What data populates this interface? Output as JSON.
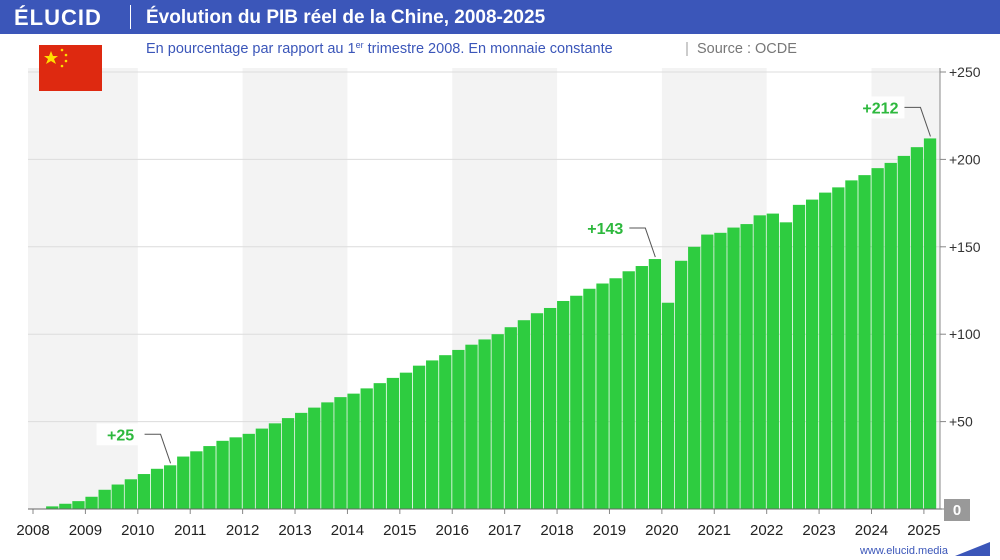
{
  "brand": "ÉLUCID",
  "footer": "www.elucid.media",
  "chart_data": {
    "type": "bar",
    "title": "Évolution du PIB réel de la Chine, 2008-2025",
    "subtitle_parts": [
      "En pourcentage par rapport au 1",
      "er",
      " trimestre 2008. En monnaie constante"
    ],
    "source": "Source : OCDE",
    "categories": [
      "2008",
      null,
      null,
      null,
      "2009",
      null,
      null,
      null,
      "2010",
      null,
      null,
      null,
      "2011",
      null,
      null,
      null,
      "2012",
      null,
      null,
      null,
      "2013",
      null,
      null,
      null,
      "2014",
      null,
      null,
      null,
      "2015",
      null,
      null,
      null,
      "2016",
      null,
      null,
      null,
      "2017",
      null,
      null,
      null,
      "2018",
      null,
      null,
      null,
      "2019",
      null,
      null,
      null,
      "2020",
      null,
      null,
      null,
      "2021",
      null,
      null,
      null,
      "2022",
      null,
      null,
      null,
      "2023",
      null,
      null,
      null,
      "2024",
      null,
      null,
      null,
      "2025"
    ],
    "values": [
      0,
      1.5,
      3,
      4.5,
      7,
      11,
      14,
      17,
      20,
      23,
      25,
      30,
      33,
      36,
      39,
      41,
      43,
      46,
      49,
      52,
      55,
      58,
      61,
      64,
      66,
      69,
      72,
      75,
      78,
      82,
      85,
      88,
      91,
      94,
      97,
      100,
      104,
      108,
      112,
      115,
      119,
      122,
      126,
      129,
      132,
      136,
      139,
      143,
      118,
      142,
      150,
      157,
      158,
      161,
      163,
      168,
      169,
      164,
      174,
      177,
      181,
      184,
      188,
      191,
      195,
      198,
      202,
      207,
      212
    ],
    "value_labels": [
      null,
      null,
      null,
      null,
      null,
      null,
      null,
      null,
      null,
      null,
      "+25",
      null,
      null,
      null,
      null,
      null,
      null,
      null,
      null,
      null,
      null,
      null,
      null,
      null,
      null,
      null,
      null,
      null,
      null,
      null,
      null,
      null,
      null,
      null,
      null,
      null,
      null,
      null,
      null,
      null,
      null,
      null,
      null,
      null,
      null,
      null,
      null,
      "+143",
      null,
      null,
      null,
      null,
      null,
      null,
      null,
      null,
      null,
      null,
      null,
      null,
      null,
      null,
      null,
      null,
      null,
      null,
      null,
      null,
      "+212"
    ],
    "color": "#2ecc40",
    "label_color": "#2db83d",
    "ylim": [
      0,
      250
    ],
    "yticks": [
      0,
      {
        "value": 50,
        "label": "+50"
      },
      {
        "value": 100,
        "label": "+100"
      },
      {
        "value": 150,
        "label": "+150"
      },
      {
        "value": 200,
        "label": "+200"
      },
      {
        "value": 250,
        "label": "+250"
      }
    ],
    "grid": true
  }
}
